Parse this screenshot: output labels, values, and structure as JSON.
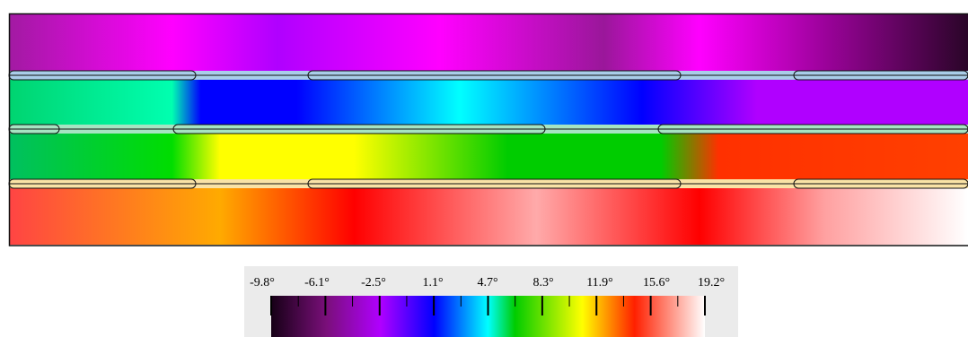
{
  "colorbar": {
    "ticks": [
      "-9.8°",
      "-6.1°",
      "-2.5°",
      "1.1°",
      "4.7°",
      "8.3°",
      "11.9°",
      "15.6°",
      "19.2°"
    ],
    "min": -9.8,
    "max": 19.2,
    "stops": [
      {
        "value": -9.8,
        "color": "#160016"
      },
      {
        "value": -6.1,
        "color": "#7a0f7a"
      },
      {
        "value": -2.5,
        "color": "#b000ff"
      },
      {
        "value": 1.1,
        "color": "#0000ff"
      },
      {
        "value": 4.7,
        "color": "#00ffff"
      },
      {
        "value": 6.5,
        "color": "#00cc00"
      },
      {
        "value": 11.0,
        "color": "#ffff00"
      },
      {
        "value": 14.5,
        "color": "#ff2000"
      },
      {
        "value": 19.2,
        "color": "#ffffff"
      }
    ]
  },
  "layers": [
    {
      "name": "layer-1",
      "stops": [
        [
          0,
          "#a21aa2"
        ],
        [
          0.17,
          "#ff00ff"
        ],
        [
          0.28,
          "#b000ff"
        ],
        [
          0.45,
          "#ff00ff"
        ],
        [
          0.62,
          "#9a179a"
        ],
        [
          0.72,
          "#ff00ff"
        ],
        [
          1,
          "#2a0528"
        ]
      ]
    },
    {
      "name": "layer-2",
      "stops": [
        [
          0,
          "#00d470"
        ],
        [
          0.17,
          "#00ffb0"
        ],
        [
          0.2,
          "#0000ff"
        ],
        [
          0.3,
          "#0000ff"
        ],
        [
          0.47,
          "#00ffff"
        ],
        [
          0.66,
          "#0000ff"
        ],
        [
          0.78,
          "#b000ff"
        ],
        [
          1,
          "#b000ff"
        ]
      ]
    },
    {
      "name": "layer-3",
      "stops": [
        [
          0,
          "#00c060"
        ],
        [
          0.17,
          "#00dd00"
        ],
        [
          0.22,
          "#ffff00"
        ],
        [
          0.36,
          "#ffff00"
        ],
        [
          0.52,
          "#00cc00"
        ],
        [
          0.68,
          "#00cc00"
        ],
        [
          0.74,
          "#ff3000"
        ],
        [
          1,
          "#ff4000"
        ]
      ]
    },
    {
      "name": "layer-4",
      "stops": [
        [
          0,
          "#ff4444"
        ],
        [
          0.22,
          "#ffaa00"
        ],
        [
          0.36,
          "#ff0000"
        ],
        [
          0.55,
          "#ffaaaa"
        ],
        [
          0.72,
          "#ff0000"
        ],
        [
          0.85,
          "#ffa0a0"
        ],
        [
          1,
          "#ffffff"
        ]
      ]
    }
  ]
}
